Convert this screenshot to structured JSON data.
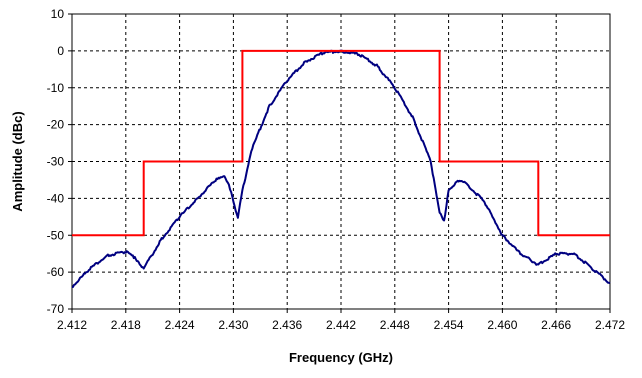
{
  "chart_data": {
    "type": "line",
    "title": "",
    "xlabel": "Frequency (GHz)",
    "ylabel": "Amplitude (dBc)",
    "xlim": [
      2.412,
      2.472
    ],
    "ylim": [
      -70,
      10
    ],
    "x_ticks": [
      "2.412",
      "2.418",
      "2.424",
      "2.430",
      "2.436",
      "2.442",
      "2.448",
      "2.454",
      "2.460",
      "2.466",
      "2.472"
    ],
    "y_ticks": [
      "10",
      "0",
      "-10",
      "-20",
      "-30",
      "-40",
      "-50",
      "-60",
      "-70"
    ],
    "grid": true,
    "legend": "none",
    "colors": {
      "series": "#000080",
      "mask": "#ff0000"
    },
    "series": [
      {
        "x": [
          2.412,
          2.414,
          2.416,
          2.418,
          2.419,
          2.42,
          2.422,
          2.424,
          2.426,
          2.428,
          2.429,
          2.4295,
          2.43,
          2.4305,
          2.431,
          2.432,
          2.434,
          2.436,
          2.438,
          2.44,
          2.442,
          2.444,
          2.446,
          2.448,
          2.45,
          2.452,
          2.453,
          2.4535,
          2.454,
          2.455,
          2.456,
          2.458,
          2.46,
          2.462,
          2.464,
          2.466,
          2.468,
          2.47,
          2.472
        ],
        "y": [
          -64,
          -59,
          -55.5,
          -54.5,
          -56,
          -59,
          -51,
          -45,
          -40,
          -35,
          -34,
          -36,
          -41,
          -45,
          -38,
          -27,
          -15,
          -8,
          -3,
          -0.5,
          0,
          -1,
          -4,
          -10,
          -18,
          -30,
          -44,
          -46,
          -38,
          -35,
          -36,
          -41,
          -50,
          -55,
          -58,
          -55,
          -55,
          -59,
          -63
        ]
      },
      {
        "x": [
          2.412,
          2.42,
          2.42,
          2.431,
          2.431,
          2.453,
          2.453,
          2.464,
          2.464,
          2.472
        ],
        "y": [
          -50,
          -50,
          -30,
          -30,
          0,
          0,
          -30,
          -30,
          -50,
          -50
        ]
      }
    ]
  }
}
